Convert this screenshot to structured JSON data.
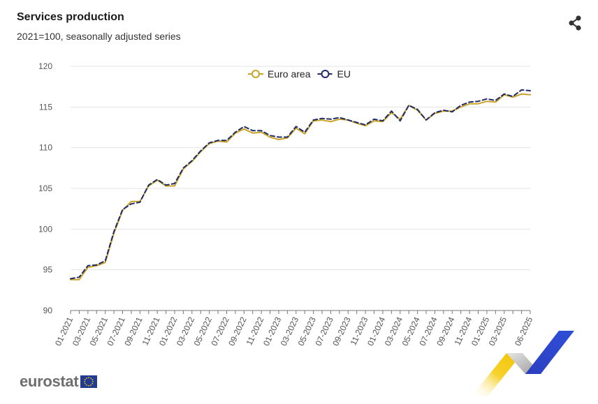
{
  "header": {
    "title": "Services production",
    "subtitle": "2021=100, seasonally adjusted series"
  },
  "icons": {
    "share": "share-icon"
  },
  "footer": {
    "logo_text": "eurostat"
  },
  "chart_data": {
    "type": "line",
    "title": "Services production",
    "subtitle": "2021=100, seasonally adjusted series",
    "xlabel": "",
    "ylabel": "",
    "ylim": [
      90,
      120
    ],
    "yticks": [
      90,
      95,
      100,
      105,
      110,
      115,
      120
    ],
    "grid": true,
    "legend_position": "top-center",
    "x_tick_labels": [
      "01-2021",
      "03-2021",
      "05-2021",
      "07-2021",
      "09-2021",
      "11-2021",
      "01-2022",
      "03-2022",
      "05-2022",
      "07-2022",
      "09-2022",
      "11-2022",
      "01-2023",
      "03-2023",
      "05-2023",
      "07-2023",
      "09-2023",
      "11-2023",
      "01-2024",
      "03-2024",
      "05-2024",
      "07-2024",
      "09-2024",
      "11-2024",
      "01-2025",
      "03-2025",
      "06-2025"
    ],
    "x": [
      "01-2021",
      "02-2021",
      "03-2021",
      "04-2021",
      "05-2021",
      "06-2021",
      "07-2021",
      "08-2021",
      "09-2021",
      "10-2021",
      "11-2021",
      "12-2021",
      "01-2022",
      "02-2022",
      "03-2022",
      "04-2022",
      "05-2022",
      "06-2022",
      "07-2022",
      "08-2022",
      "09-2022",
      "10-2022",
      "11-2022",
      "12-2022",
      "01-2023",
      "02-2023",
      "03-2023",
      "04-2023",
      "05-2023",
      "06-2023",
      "07-2023",
      "08-2023",
      "09-2023",
      "10-2023",
      "11-2023",
      "12-2023",
      "01-2024",
      "02-2024",
      "03-2024",
      "04-2024",
      "05-2024",
      "06-2024",
      "07-2024",
      "08-2024",
      "09-2024",
      "10-2024",
      "11-2024",
      "12-2024",
      "01-2025",
      "02-2025",
      "03-2025",
      "04-2025",
      "05-2025",
      "06-2025"
    ],
    "series": [
      {
        "name": "Euro area",
        "color": "#c9a227",
        "style": "solid",
        "values": [
          93.8,
          93.8,
          95.3,
          95.5,
          95.9,
          99.5,
          102.3,
          103.4,
          103.4,
          105.3,
          106.0,
          105.3,
          105.3,
          107.4,
          108.3,
          109.5,
          110.5,
          110.8,
          110.7,
          111.8,
          112.3,
          111.8,
          111.9,
          111.3,
          111.0,
          111.2,
          112.4,
          111.7,
          113.3,
          113.4,
          113.2,
          113.5,
          113.4,
          113.0,
          112.7,
          113.3,
          113.2,
          114.3,
          113.5,
          115.2,
          114.6,
          113.4,
          114.2,
          114.5,
          114.5,
          115.0,
          115.4,
          115.4,
          115.7,
          115.6,
          116.5,
          116.2,
          116.6,
          116.5
        ]
      },
      {
        "name": "EU",
        "color": "#1f2a66",
        "style": "dashed",
        "values": [
          93.9,
          94.1,
          95.5,
          95.6,
          96.1,
          99.7,
          102.4,
          103.1,
          103.3,
          105.4,
          106.1,
          105.4,
          105.6,
          107.5,
          108.4,
          109.6,
          110.6,
          110.9,
          110.9,
          111.9,
          112.6,
          112.1,
          112.1,
          111.5,
          111.3,
          111.3,
          112.6,
          111.9,
          113.4,
          113.6,
          113.5,
          113.7,
          113.4,
          113.1,
          112.8,
          113.5,
          113.3,
          114.5,
          113.3,
          115.2,
          114.7,
          113.4,
          114.3,
          114.6,
          114.4,
          115.2,
          115.6,
          115.7,
          116.0,
          115.8,
          116.6,
          116.3,
          117.1,
          117.0
        ]
      }
    ]
  }
}
